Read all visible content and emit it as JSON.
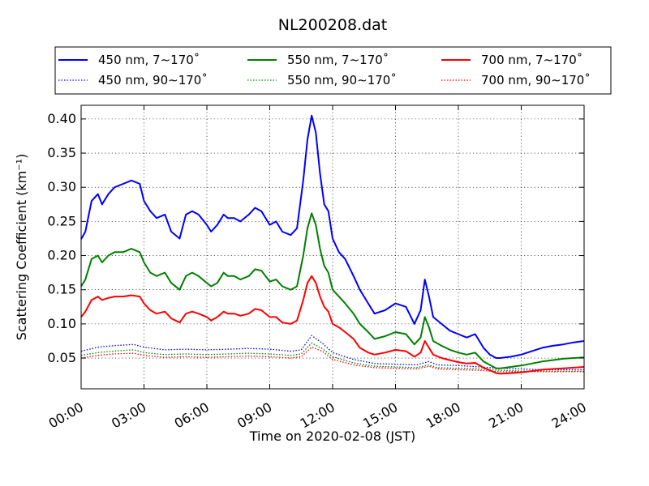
{
  "chart_data": {
    "type": "line",
    "title": "NL200208.dat",
    "xlabel": "Time on 2020-02-08 (JST)",
    "ylabel": "Scattering Coefficient (km⁻¹)",
    "xlim": [
      0,
      24
    ],
    "ylim": [
      0.005,
      0.42
    ],
    "xticks": [
      0,
      3,
      6,
      9,
      12,
      15,
      18,
      21,
      24
    ],
    "xtick_labels": [
      "00:00",
      "03:00",
      "06:00",
      "09:00",
      "12:00",
      "15:00",
      "18:00",
      "21:00",
      "24:00"
    ],
    "yticks": [
      0.05,
      0.1,
      0.15,
      0.2,
      0.25,
      0.3,
      0.35,
      0.4
    ],
    "ytick_labels": [
      "0.05",
      "0.10",
      "0.15",
      "0.20",
      "0.25",
      "0.30",
      "0.35",
      "0.40"
    ],
    "grid": true,
    "legend_placement": "top, above plot, 3 columns",
    "series": [
      {
        "name": "450 nm, 7∼170˚",
        "color": "#0000ff",
        "style": "solid",
        "x": [
          0,
          0.2,
          0.5,
          0.8,
          1.0,
          1.3,
          1.6,
          2.0,
          2.4,
          2.8,
          3.0,
          3.3,
          3.6,
          4.0,
          4.3,
          4.7,
          5.0,
          5.3,
          5.6,
          6.0,
          6.2,
          6.5,
          6.8,
          7.0,
          7.3,
          7.6,
          8.0,
          8.3,
          8.6,
          9.0,
          9.3,
          9.6,
          10.0,
          10.3,
          10.6,
          10.8,
          11.0,
          11.2,
          11.4,
          11.6,
          11.8,
          12.0,
          12.3,
          12.6,
          13.0,
          13.3,
          13.7,
          14.0,
          14.5,
          15.0,
          15.5,
          15.9,
          16.2,
          16.4,
          16.6,
          16.8,
          17.2,
          17.6,
          18.0,
          18.4,
          18.8,
          19.2,
          19.5,
          19.8,
          20.0,
          20.5,
          21.0,
          21.5,
          22.0,
          22.5,
          23.0,
          23.5,
          24.0
        ],
        "values": [
          0.224,
          0.235,
          0.28,
          0.29,
          0.275,
          0.29,
          0.3,
          0.305,
          0.31,
          0.305,
          0.28,
          0.265,
          0.255,
          0.26,
          0.235,
          0.225,
          0.26,
          0.265,
          0.26,
          0.245,
          0.235,
          0.245,
          0.26,
          0.255,
          0.255,
          0.25,
          0.26,
          0.27,
          0.265,
          0.245,
          0.25,
          0.235,
          0.23,
          0.24,
          0.31,
          0.37,
          0.405,
          0.38,
          0.32,
          0.275,
          0.265,
          0.225,
          0.205,
          0.195,
          0.17,
          0.15,
          0.13,
          0.115,
          0.12,
          0.13,
          0.125,
          0.1,
          0.12,
          0.165,
          0.14,
          0.11,
          0.1,
          0.09,
          0.085,
          0.08,
          0.085,
          0.065,
          0.055,
          0.05,
          0.05,
          0.052,
          0.055,
          0.06,
          0.065,
          0.068,
          0.07,
          0.073,
          0.075
        ]
      },
      {
        "name": "450 nm, 90∼170˚",
        "color": "#0000ff",
        "style": "dotted",
        "x": [
          0,
          0.8,
          1.5,
          2.5,
          3.0,
          4.0,
          5.0,
          6.0,
          7.0,
          8.0,
          9.0,
          10.0,
          10.5,
          11.0,
          11.5,
          12.0,
          13.0,
          14.0,
          15.0,
          16.0,
          16.6,
          17.0,
          18.0,
          19.0,
          20.0,
          21.0,
          22.0,
          23.0,
          24.0
        ],
        "values": [
          0.06,
          0.066,
          0.068,
          0.07,
          0.066,
          0.062,
          0.063,
          0.062,
          0.063,
          0.064,
          0.063,
          0.06,
          0.062,
          0.083,
          0.072,
          0.058,
          0.048,
          0.042,
          0.041,
          0.04,
          0.045,
          0.04,
          0.039,
          0.037,
          0.035,
          0.034,
          0.033,
          0.033,
          0.033
        ]
      },
      {
        "name": "550 nm, 7∼170˚",
        "color": "#008000",
        "style": "solid",
        "x": [
          0,
          0.2,
          0.5,
          0.8,
          1.0,
          1.3,
          1.6,
          2.0,
          2.4,
          2.8,
          3.0,
          3.3,
          3.6,
          4.0,
          4.3,
          4.7,
          5.0,
          5.3,
          5.6,
          6.0,
          6.2,
          6.5,
          6.8,
          7.0,
          7.3,
          7.6,
          8.0,
          8.3,
          8.6,
          9.0,
          9.3,
          9.6,
          10.0,
          10.3,
          10.6,
          10.8,
          11.0,
          11.2,
          11.4,
          11.6,
          11.8,
          12.0,
          12.3,
          12.6,
          13.0,
          13.3,
          13.7,
          14.0,
          14.5,
          15.0,
          15.5,
          15.9,
          16.2,
          16.4,
          16.6,
          16.8,
          17.2,
          17.6,
          18.0,
          18.4,
          18.8,
          19.2,
          19.5,
          19.8,
          20.0,
          20.5,
          21.0,
          21.5,
          22.0,
          22.5,
          23.0,
          23.5,
          24.0
        ],
        "values": [
          0.155,
          0.165,
          0.195,
          0.2,
          0.19,
          0.2,
          0.205,
          0.205,
          0.21,
          0.205,
          0.19,
          0.175,
          0.17,
          0.175,
          0.16,
          0.15,
          0.17,
          0.175,
          0.17,
          0.16,
          0.155,
          0.16,
          0.175,
          0.17,
          0.17,
          0.165,
          0.17,
          0.18,
          0.178,
          0.162,
          0.165,
          0.155,
          0.15,
          0.155,
          0.2,
          0.24,
          0.262,
          0.245,
          0.21,
          0.185,
          0.175,
          0.15,
          0.14,
          0.13,
          0.115,
          0.1,
          0.088,
          0.078,
          0.082,
          0.088,
          0.085,
          0.07,
          0.08,
          0.11,
          0.095,
          0.075,
          0.068,
          0.062,
          0.058,
          0.055,
          0.058,
          0.045,
          0.04,
          0.035,
          0.035,
          0.037,
          0.039,
          0.042,
          0.045,
          0.047,
          0.049,
          0.05,
          0.051
        ]
      },
      {
        "name": "550 nm, 90∼170˚",
        "color": "#008000",
        "style": "dotted",
        "x": [
          0,
          0.8,
          1.5,
          2.5,
          3.0,
          4.0,
          5.0,
          6.0,
          7.0,
          8.0,
          9.0,
          10.0,
          10.5,
          11.0,
          11.5,
          12.0,
          13.0,
          14.0,
          15.0,
          16.0,
          16.6,
          17.0,
          18.0,
          19.0,
          20.0,
          21.0,
          22.0,
          23.0,
          24.0
        ],
        "values": [
          0.054,
          0.058,
          0.06,
          0.062,
          0.058,
          0.055,
          0.056,
          0.055,
          0.056,
          0.057,
          0.056,
          0.054,
          0.056,
          0.072,
          0.064,
          0.052,
          0.043,
          0.038,
          0.037,
          0.036,
          0.04,
          0.036,
          0.035,
          0.034,
          0.032,
          0.031,
          0.031,
          0.031,
          0.031
        ]
      },
      {
        "name": "700 nm, 7∼170˚",
        "color": "#ff0000",
        "style": "solid",
        "x": [
          0,
          0.2,
          0.5,
          0.8,
          1.0,
          1.3,
          1.6,
          2.0,
          2.4,
          2.8,
          3.0,
          3.3,
          3.6,
          4.0,
          4.3,
          4.7,
          5.0,
          5.3,
          5.6,
          6.0,
          6.2,
          6.5,
          6.8,
          7.0,
          7.3,
          7.6,
          8.0,
          8.3,
          8.6,
          9.0,
          9.3,
          9.6,
          10.0,
          10.3,
          10.6,
          10.8,
          11.0,
          11.2,
          11.4,
          11.6,
          11.8,
          12.0,
          12.3,
          12.6,
          13.0,
          13.3,
          13.7,
          14.0,
          14.5,
          15.0,
          15.5,
          15.9,
          16.2,
          16.4,
          16.6,
          16.8,
          17.2,
          17.6,
          18.0,
          18.4,
          18.8,
          19.2,
          19.5,
          19.8,
          20.0,
          20.5,
          21.0,
          21.5,
          22.0,
          22.5,
          23.0,
          23.5,
          24.0
        ],
        "values": [
          0.11,
          0.118,
          0.135,
          0.14,
          0.135,
          0.138,
          0.14,
          0.14,
          0.142,
          0.14,
          0.13,
          0.12,
          0.115,
          0.118,
          0.108,
          0.102,
          0.115,
          0.118,
          0.115,
          0.11,
          0.105,
          0.11,
          0.118,
          0.115,
          0.115,
          0.112,
          0.115,
          0.122,
          0.12,
          0.11,
          0.11,
          0.102,
          0.1,
          0.105,
          0.135,
          0.16,
          0.17,
          0.16,
          0.14,
          0.125,
          0.118,
          0.1,
          0.095,
          0.088,
          0.078,
          0.065,
          0.058,
          0.055,
          0.058,
          0.062,
          0.06,
          0.052,
          0.058,
          0.075,
          0.065,
          0.055,
          0.05,
          0.047,
          0.044,
          0.042,
          0.043,
          0.036,
          0.032,
          0.028,
          0.027,
          0.028,
          0.029,
          0.031,
          0.033,
          0.034,
          0.035,
          0.036,
          0.037
        ]
      },
      {
        "name": "700 nm, 90∼170˚",
        "color": "#ff0000",
        "style": "dotted",
        "x": [
          0,
          0.8,
          1.5,
          2.5,
          3.0,
          4.0,
          5.0,
          6.0,
          7.0,
          8.0,
          9.0,
          10.0,
          10.5,
          11.0,
          11.5,
          12.0,
          13.0,
          14.0,
          15.0,
          16.0,
          16.6,
          17.0,
          18.0,
          19.0,
          20.0,
          21.0,
          22.0,
          23.0,
          24.0
        ],
        "values": [
          0.05,
          0.054,
          0.056,
          0.057,
          0.054,
          0.051,
          0.052,
          0.051,
          0.052,
          0.053,
          0.052,
          0.05,
          0.052,
          0.066,
          0.06,
          0.048,
          0.04,
          0.036,
          0.035,
          0.034,
          0.038,
          0.034,
          0.033,
          0.032,
          0.03,
          0.03,
          0.03,
          0.03,
          0.03
        ]
      }
    ]
  }
}
